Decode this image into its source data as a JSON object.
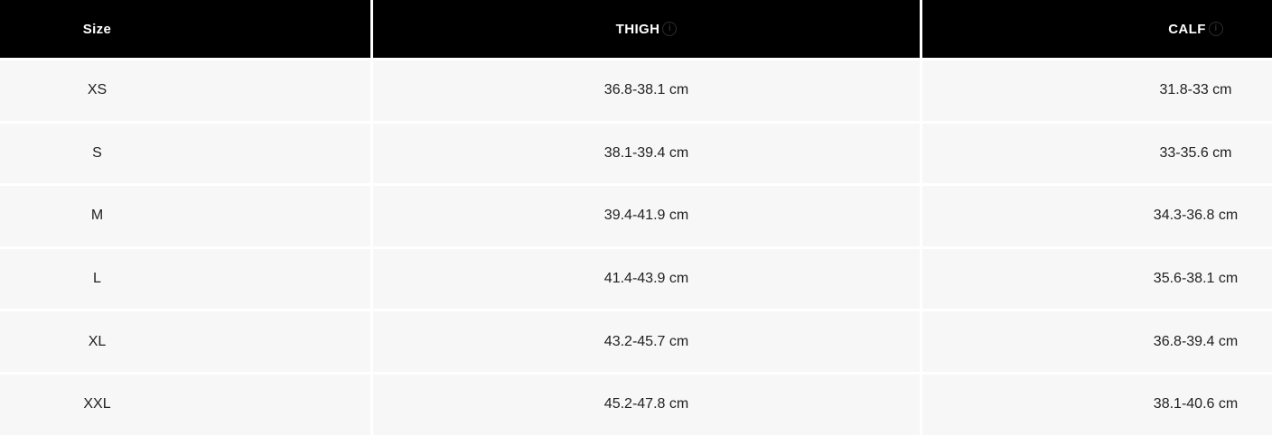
{
  "table": {
    "columns": [
      {
        "label": "Size",
        "has_info_icon": false
      },
      {
        "label": "THIGH",
        "has_info_icon": true
      },
      {
        "label": "CALF",
        "has_info_icon": true
      }
    ],
    "info_icon_glyph": "i",
    "rows": [
      {
        "size": "XS",
        "thigh": "36.8-38.1 cm",
        "calf": "31.8-33 cm"
      },
      {
        "size": "S",
        "thigh": "38.1-39.4 cm",
        "calf": "33-35.6 cm"
      },
      {
        "size": "M",
        "thigh": "39.4-41.9 cm",
        "calf": "34.3-36.8 cm"
      },
      {
        "size": "L",
        "thigh": "41.4-43.9 cm",
        "calf": "35.6-38.1 cm"
      },
      {
        "size": "XL",
        "thigh": "43.2-45.7 cm",
        "calf": "36.8-39.4 cm"
      },
      {
        "size": "XXL",
        "thigh": "45.2-47.8 cm",
        "calf": "38.1-40.6 cm"
      }
    ]
  },
  "colors": {
    "header_bg": "#000000",
    "header_text": "#ffffff",
    "row_bg": "#f7f7f7",
    "row_text": "#212121",
    "gap": "#ffffff",
    "info_icon": "#2e2e2e"
  }
}
